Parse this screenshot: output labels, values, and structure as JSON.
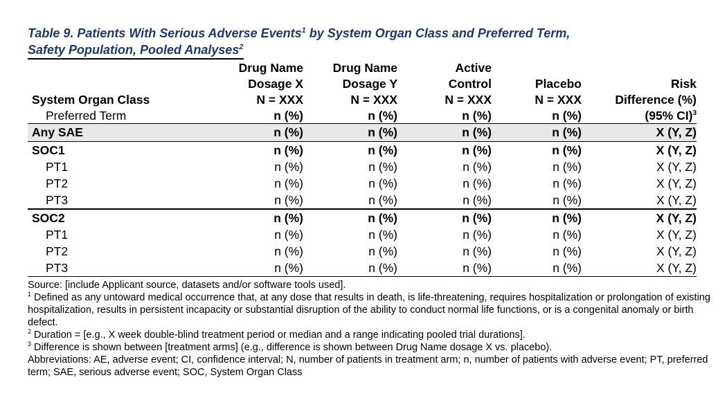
{
  "title": {
    "line1": "Table 9. Patients With Serious Adverse Events",
    "line1_sup": "1",
    "line1_rest": " by System Organ Class and Preferred Term,",
    "line2": "Safety Population, Pooled Analyses",
    "line2_sup": "2"
  },
  "header": {
    "col1": "System Organ Class",
    "col1_sub": "Preferred Term",
    "col2": [
      "Drug Name",
      "Dosage X",
      "N = XXX"
    ],
    "col3": [
      "Drug Name",
      "Dosage Y",
      "N = XXX"
    ],
    "col4": [
      "Active",
      "Control",
      "N = XXX"
    ],
    "col5": [
      "Placebo",
      "N = XXX"
    ],
    "col6": [
      "Risk",
      "Difference (%)"
    ],
    "col6_sub": "(95% CI)",
    "col6_sub_sup": "3",
    "n_pct": "n (%)"
  },
  "rows": {
    "any": {
      "label": "Any SAE",
      "vals": [
        "n (%)",
        "n (%)",
        "n (%)",
        "n (%)",
        "X (Y, Z)"
      ]
    },
    "soc1": {
      "label": "SOC1",
      "vals": [
        "n (%)",
        "n (%)",
        "n (%)",
        "n (%)",
        "X (Y, Z)"
      ],
      "pts": [
        {
          "label": "PT1",
          "vals": [
            "n (%)",
            "n (%)",
            "n (%)",
            "n (%)",
            "X (Y, Z)"
          ]
        },
        {
          "label": "PT2",
          "vals": [
            "n (%)",
            "n (%)",
            "n (%)",
            "n (%)",
            "X (Y, Z)"
          ]
        },
        {
          "label": "PT3",
          "vals": [
            "n (%)",
            "n (%)",
            "n (%)",
            "n (%)",
            "X (Y, Z)"
          ]
        }
      ]
    },
    "soc2": {
      "label": "SOC2",
      "vals": [
        "n (%)",
        "n (%)",
        "n (%)",
        "n (%)",
        "X (Y, Z)"
      ],
      "pts": [
        {
          "label": "PT1",
          "vals": [
            "n (%)",
            "n (%)",
            "n (%)",
            "n (%)",
            "X (Y, Z)"
          ]
        },
        {
          "label": "PT2",
          "vals": [
            "n (%)",
            "n (%)",
            "n (%)",
            "n (%)",
            "X (Y, Z)"
          ]
        },
        {
          "label": "PT3",
          "vals": [
            "n (%)",
            "n (%)",
            "n (%)",
            "n (%)",
            "X (Y, Z)"
          ]
        }
      ]
    }
  },
  "footnotes": {
    "source": "Source: [include Applicant source, datasets and/or software tools used].",
    "fn1_sup": "1",
    "fn1": " Defined as any untoward medical occurrence that, at any dose that results in death, is life-threatening, requires hospitalization or prolongation of existing hospitalization, results in persistent incapacity or substantial disruption of the ability to conduct normal life functions, or is a congenital anomaly or birth defect.",
    "fn2_sup": "2",
    "fn2": " Duration = [e.g., X week double-blind treatment period or median and a range indicating pooled trial durations].",
    "fn3_sup": "3",
    "fn3": " Difference is shown between [treatment arms] (e.g., difference is shown between Drug Name dosage X vs. placebo).",
    "abbrev": "Abbreviations: AE, adverse event; CI, confidence interval; N, number of patients in treatment arm; n, number of patients with adverse event; PT, preferred term; SAE, serious adverse event; SOC, System Organ Class"
  },
  "colors": {
    "title": "#1f3864",
    "any_row_bg": "#e8e8e8"
  }
}
